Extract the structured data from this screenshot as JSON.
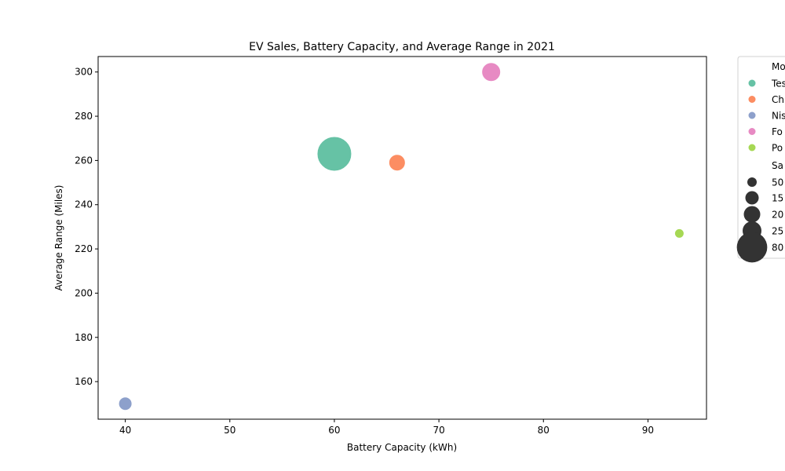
{
  "chart_data": {
    "type": "scatter",
    "title": "EV Sales, Battery Capacity, and Average Range in 2021",
    "xlabel": "Battery Capacity (kWh)",
    "ylabel": "Average Range (Miles)",
    "xlim": [
      37.4,
      95.6
    ],
    "ylim": [
      143,
      307
    ],
    "xticks": [
      40,
      50,
      60,
      70,
      80,
      90
    ],
    "yticks": [
      160,
      180,
      200,
      220,
      240,
      260,
      280,
      300
    ],
    "grid": false,
    "legend_position": "outside-right",
    "points": [
      {
        "model": "Tesla",
        "battery_kwh": 60,
        "range_miles": 263,
        "color": "#66c2a5",
        "size_level": 4
      },
      {
        "model": "Chevrolet",
        "battery_kwh": 66,
        "range_miles": 259,
        "color": "#fc8d62",
        "size_level": 2
      },
      {
        "model": "Nissan",
        "battery_kwh": 40,
        "range_miles": 150,
        "color": "#8da0cb",
        "size_level": 1
      },
      {
        "model": "Ford",
        "battery_kwh": 75,
        "range_miles": 300,
        "color": "#e78ac3",
        "size_level": 3
      },
      {
        "model": "Porsche",
        "battery_kwh": 93,
        "range_miles": 227,
        "color": "#a6d854",
        "size_level": 0
      }
    ],
    "legend": {
      "hue_title": "Mo",
      "hue_entries": [
        {
          "label": "Tes",
          "color": "#66c2a5"
        },
        {
          "label": "Ch",
          "color": "#fc8d62"
        },
        {
          "label": "Nis",
          "color": "#8da0cb"
        },
        {
          "label": "Fo",
          "color": "#e78ac3"
        },
        {
          "label": "Po",
          "color": "#a6d854"
        }
      ],
      "size_title": "Sa",
      "size_entries": [
        {
          "label": "50",
          "size_level": 0
        },
        {
          "label": "15",
          "size_level": 1
        },
        {
          "label": "20",
          "size_level": 2
        },
        {
          "label": "25",
          "size_level": 3
        },
        {
          "label": "80",
          "size_level": 4
        }
      ]
    }
  }
}
